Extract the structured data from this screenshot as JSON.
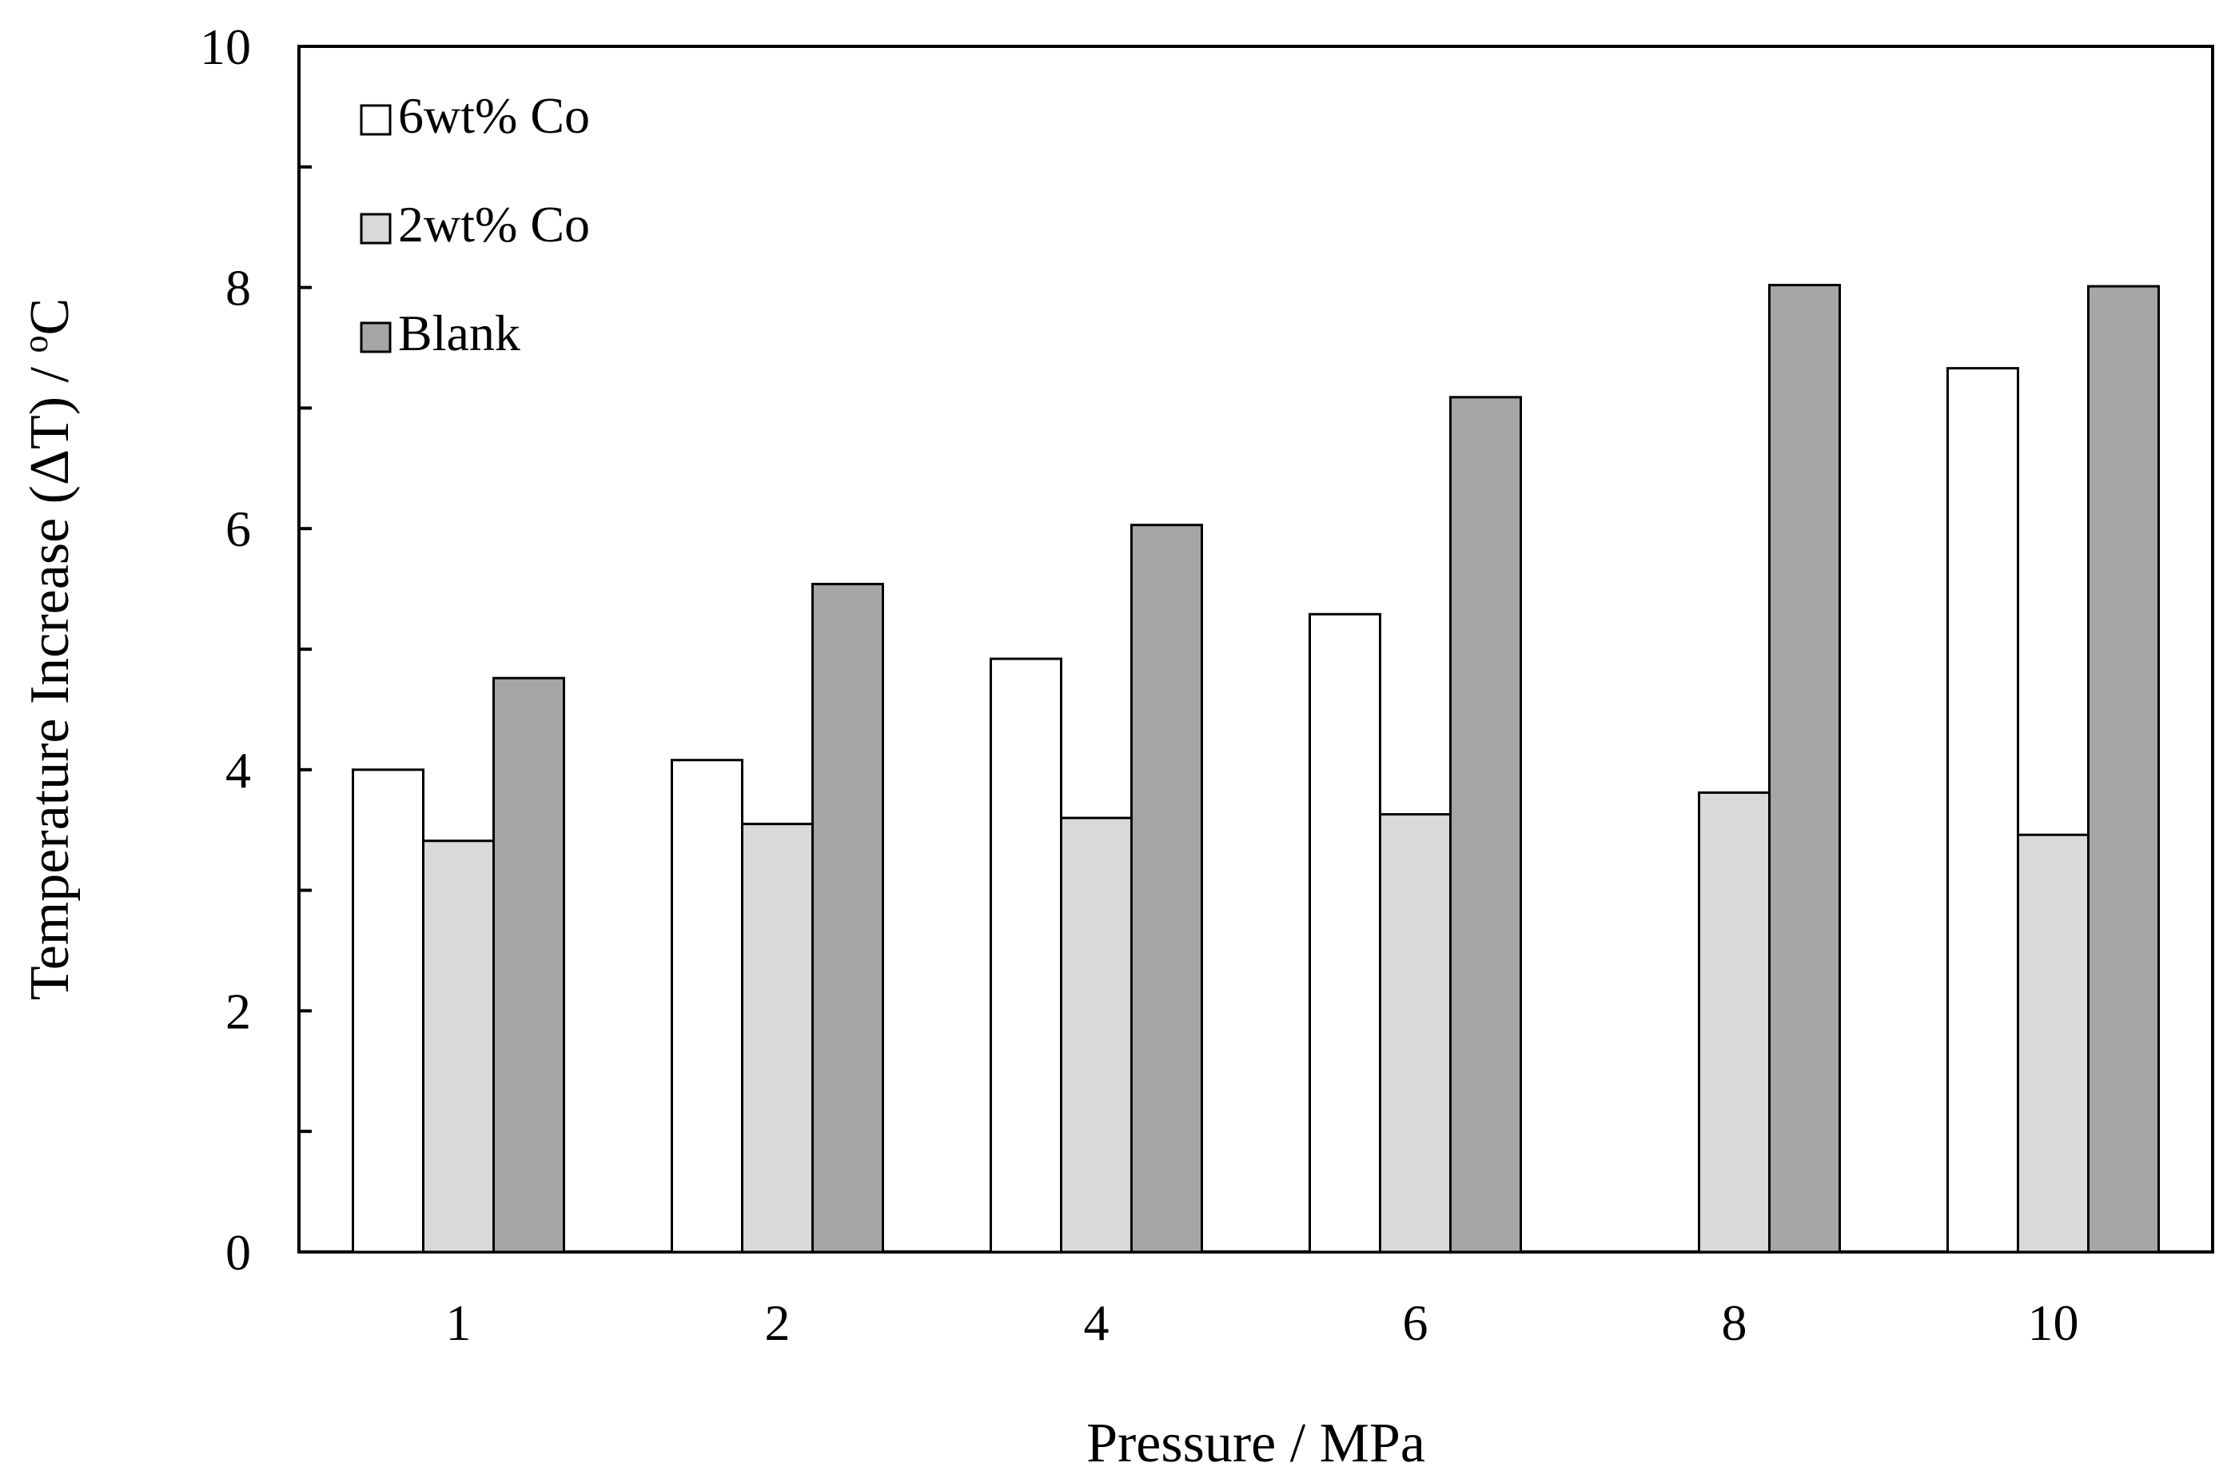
{
  "chart_data": {
    "type": "bar",
    "xlabel": "Pressure / MPa",
    "ylabel_main": "Temperature Increase (ΔT) / ",
    "ylabel_unit_sup": "o",
    "ylabel_unit": "C",
    "categories": [
      "1",
      "2",
      "4",
      "6",
      "8",
      "10"
    ],
    "ylim": [
      0,
      10
    ],
    "yticks": [
      "0",
      "2",
      "4",
      "6",
      "8",
      "10"
    ],
    "grid": false,
    "legend_position": "top-left",
    "series": [
      {
        "name": "6wt% Co",
        "values": [
          4.0,
          4.08,
          4.92,
          5.29,
          null,
          7.33
        ],
        "color": "#ffffff"
      },
      {
        "name": "2wt% Co",
        "values": [
          3.41,
          3.55,
          3.6,
          3.63,
          3.81,
          3.46
        ],
        "color": "#d9d9d9"
      },
      {
        "name": "Blank",
        "values": [
          4.76,
          5.54,
          6.03,
          7.09,
          8.02,
          8.01
        ],
        "color": "#a6a6a6"
      }
    ]
  }
}
